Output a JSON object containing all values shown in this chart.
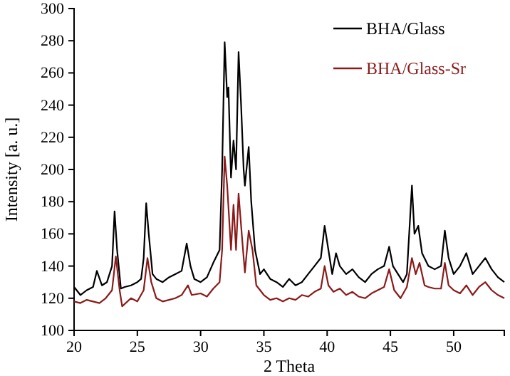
{
  "chart_data": {
    "type": "line",
    "xlabel": "2 Theta",
    "ylabel": "Intensity [a. u.]",
    "xlim": [
      20,
      54
    ],
    "xticks": [
      20,
      25,
      30,
      35,
      40,
      45,
      50
    ],
    "ylim": [
      100,
      300
    ],
    "yticks": [
      100,
      120,
      140,
      160,
      180,
      200,
      220,
      240,
      260,
      280,
      300
    ],
    "legend": "top right",
    "grid": false,
    "series": [
      {
        "name": "BHA/Glass",
        "color": "#000000",
        "x": [
          20,
          20.5,
          21,
          21.5,
          21.8,
          22.2,
          22.6,
          23.0,
          23.2,
          23.4,
          23.7,
          24,
          24.5,
          25,
          25.3,
          25.5,
          25.7,
          25.9,
          26.2,
          26.5,
          27,
          27.5,
          28,
          28.5,
          28.9,
          29.2,
          29.5,
          30,
          30.5,
          31,
          31.5,
          31.7,
          31.9,
          32.1,
          32.2,
          32.4,
          32.6,
          32.8,
          33.0,
          33.2,
          33.4,
          33.5,
          33.8,
          34.0,
          34.3,
          34.7,
          35,
          35.5,
          36,
          36.5,
          37,
          37.5,
          38,
          38.5,
          39,
          39.5,
          39.8,
          40.1,
          40.4,
          40.7,
          41,
          41.5,
          42,
          42.5,
          43,
          43.5,
          44,
          44.5,
          44.9,
          45.2,
          45.6,
          46,
          46.3,
          46.7,
          46.9,
          47.2,
          47.5,
          48,
          48.5,
          49,
          49.3,
          49.6,
          50,
          50.5,
          51,
          51.5,
          52,
          52.5,
          53,
          53.5,
          54
        ],
        "values": [
          127,
          122,
          125,
          127,
          137,
          128,
          130,
          140,
          174,
          150,
          126,
          127,
          128,
          130,
          132,
          145,
          179,
          160,
          135,
          132,
          130,
          133,
          135,
          137,
          154,
          140,
          132,
          130,
          133,
          142,
          150,
          200,
          279,
          245,
          251,
          195,
          218,
          200,
          273,
          240,
          200,
          190,
          214,
          180,
          150,
          135,
          138,
          132,
          130,
          127,
          132,
          128,
          130,
          135,
          140,
          145,
          165,
          150,
          135,
          148,
          140,
          135,
          138,
          133,
          130,
          135,
          138,
          140,
          152,
          140,
          135,
          130,
          135,
          190,
          160,
          165,
          148,
          140,
          138,
          140,
          162,
          145,
          135,
          140,
          148,
          135,
          140,
          145,
          138,
          133,
          130
        ]
      },
      {
        "name": "BHA/Glass-Sr",
        "color": "#8b1a1a",
        "x": [
          20,
          20.5,
          21,
          21.5,
          22,
          22.5,
          23,
          23.3,
          23.6,
          23.8,
          24.5,
          25,
          25.5,
          25.8,
          26.1,
          26.5,
          27,
          27.5,
          28,
          28.5,
          29,
          29.3,
          30,
          30.5,
          31,
          31.5,
          31.7,
          31.9,
          32.1,
          32.4,
          32.6,
          32.8,
          33.0,
          33.3,
          33.5,
          33.8,
          34.1,
          34.4,
          35,
          35.5,
          36,
          36.5,
          37,
          37.5,
          38,
          38.5,
          39,
          39.5,
          39.8,
          40.1,
          40.5,
          41,
          41.5,
          42,
          42.5,
          43,
          43.5,
          44,
          44.5,
          44.9,
          45.3,
          45.8,
          46.3,
          46.7,
          47.0,
          47.3,
          47.7,
          48,
          48.5,
          49,
          49.3,
          49.6,
          50,
          50.5,
          51,
          51.5,
          52,
          52.5,
          53,
          53.5,
          54
        ],
        "values": [
          118,
          117,
          119,
          118,
          117,
          120,
          125,
          146,
          125,
          115,
          120,
          118,
          125,
          145,
          130,
          120,
          118,
          119,
          120,
          122,
          128,
          122,
          123,
          121,
          126,
          130,
          150,
          208,
          190,
          150,
          178,
          150,
          185,
          155,
          136,
          162,
          150,
          128,
          122,
          119,
          120,
          118,
          120,
          119,
          122,
          121,
          124,
          126,
          140,
          128,
          124,
          126,
          122,
          124,
          121,
          120,
          123,
          125,
          127,
          138,
          125,
          120,
          127,
          145,
          135,
          142,
          128,
          127,
          126,
          126,
          142,
          128,
          125,
          123,
          128,
          122,
          127,
          130,
          125,
          122,
          120
        ]
      }
    ]
  }
}
